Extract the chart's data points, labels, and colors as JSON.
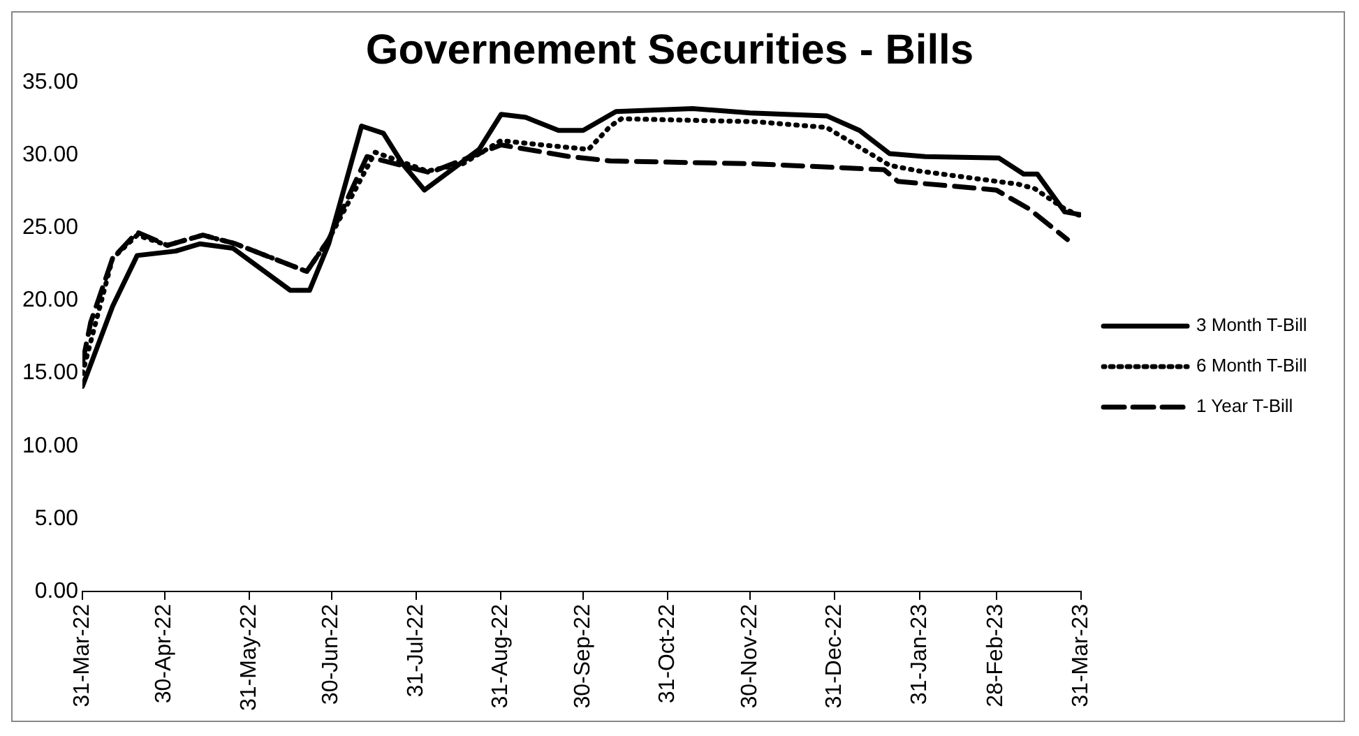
{
  "chart_data": {
    "type": "line",
    "title": "Governement Securities - Bills",
    "xlim": [
      "2022-03-31",
      "2023-03-31"
    ],
    "xticks": [
      {
        "value": "2022-03-31",
        "label": "31-Mar-22"
      },
      {
        "value": "2022-04-30",
        "label": "30-Apr-22"
      },
      {
        "value": "2022-05-31",
        "label": "31-May-22"
      },
      {
        "value": "2022-06-30",
        "label": "30-Jun-22"
      },
      {
        "value": "2022-07-31",
        "label": "31-Jul-22"
      },
      {
        "value": "2022-08-31",
        "label": "31-Aug-22"
      },
      {
        "value": "2022-09-30",
        "label": "30-Sep-22"
      },
      {
        "value": "2022-10-31",
        "label": "31-Oct-22"
      },
      {
        "value": "2022-11-30",
        "label": "30-Nov-22"
      },
      {
        "value": "2022-12-31",
        "label": "31-Dec-22"
      },
      {
        "value": "2023-01-31",
        "label": "31-Jan-23"
      },
      {
        "value": "2023-02-28",
        "label": "28-Feb-23"
      },
      {
        "value": "2023-03-31",
        "label": "31-Mar-23"
      }
    ],
    "ylim": [
      0,
      35
    ],
    "yticks": [
      {
        "value": 0,
        "label": "0.00"
      },
      {
        "value": 5,
        "label": "5.00"
      },
      {
        "value": 10,
        "label": "10.00"
      },
      {
        "value": 15,
        "label": "15.00"
      },
      {
        "value": 20,
        "label": "20.00"
      },
      {
        "value": 25,
        "label": "25.00"
      },
      {
        "value": 30,
        "label": "30.00"
      },
      {
        "value": 35,
        "label": "35.00"
      }
    ],
    "grid": false,
    "legend": "right",
    "marker": "none",
    "series": [
      {
        "name": "3 Month T-Bill",
        "color": "#000000",
        "line_style": "solid",
        "x": [
          "2022-03-31",
          "2022-04-11",
          "2022-04-20",
          "2022-05-04",
          "2022-05-13",
          "2022-05-25",
          "2022-06-15",
          "2022-06-22",
          "2022-06-29",
          "2022-07-11",
          "2022-07-19",
          "2022-07-26",
          "2022-08-03",
          "2022-08-23",
          "2022-08-31",
          "2022-09-09",
          "2022-09-21",
          "2022-09-30",
          "2022-10-12",
          "2022-11-09",
          "2022-11-30",
          "2022-12-28",
          "2023-01-09",
          "2023-01-20",
          "2023-02-02",
          "2023-03-01",
          "2023-03-10",
          "2023-03-15",
          "2023-03-25",
          "2023-03-31"
        ],
        "values": [
          14.1,
          19.6,
          23.1,
          23.4,
          23.9,
          23.6,
          20.7,
          20.7,
          23.9,
          32.0,
          31.5,
          29.4,
          27.6,
          30.4,
          32.8,
          32.6,
          31.7,
          31.7,
          33.0,
          33.2,
          32.9,
          32.7,
          31.7,
          30.1,
          29.9,
          29.8,
          28.7,
          28.7,
          26.1,
          25.9
        ]
      },
      {
        "name": "6 Month T-Bill",
        "color": "#000000",
        "line_style": "dotted",
        "x": [
          "2022-03-31",
          "2022-04-11",
          "2022-04-20",
          "2022-05-01",
          "2022-05-14",
          "2022-05-26",
          "2022-06-21",
          "2022-06-29",
          "2022-07-16",
          "2022-08-04",
          "2022-08-17",
          "2022-08-31",
          "2022-09-15",
          "2022-10-02",
          "2022-10-10",
          "2022-10-14",
          "2022-12-02",
          "2022-12-28",
          "2023-01-20",
          "2023-01-31",
          "2023-03-08",
          "2023-03-14",
          "2023-03-25",
          "2023-03-31"
        ],
        "values": [
          15.0,
          22.9,
          24.5,
          23.8,
          24.5,
          23.9,
          22.0,
          24.2,
          30.2,
          28.9,
          29.4,
          31.0,
          30.7,
          30.4,
          32.0,
          32.5,
          32.3,
          31.9,
          29.3,
          28.9,
          28.0,
          27.7,
          26.3,
          25.8
        ]
      },
      {
        "name": "1 Year T-Bill",
        "color": "#000000",
        "line_style": "dashed",
        "x": [
          "2022-03-31",
          "2022-04-03",
          "2022-04-11",
          "2022-04-20",
          "2022-05-01",
          "2022-05-14",
          "2022-05-26",
          "2022-06-21",
          "2022-06-29",
          "2022-07-13",
          "2022-08-05",
          "2022-08-31",
          "2022-09-25",
          "2022-10-10",
          "2022-12-02",
          "2023-01-18",
          "2023-01-23",
          "2023-02-28",
          "2023-03-12",
          "2023-03-26"
        ],
        "values": [
          15.7,
          18.5,
          22.9,
          24.7,
          23.8,
          24.5,
          23.9,
          22.0,
          24.2,
          29.9,
          28.8,
          30.7,
          29.9,
          29.6,
          29.4,
          29.0,
          28.2,
          27.6,
          26.3,
          24.2
        ]
      }
    ]
  }
}
